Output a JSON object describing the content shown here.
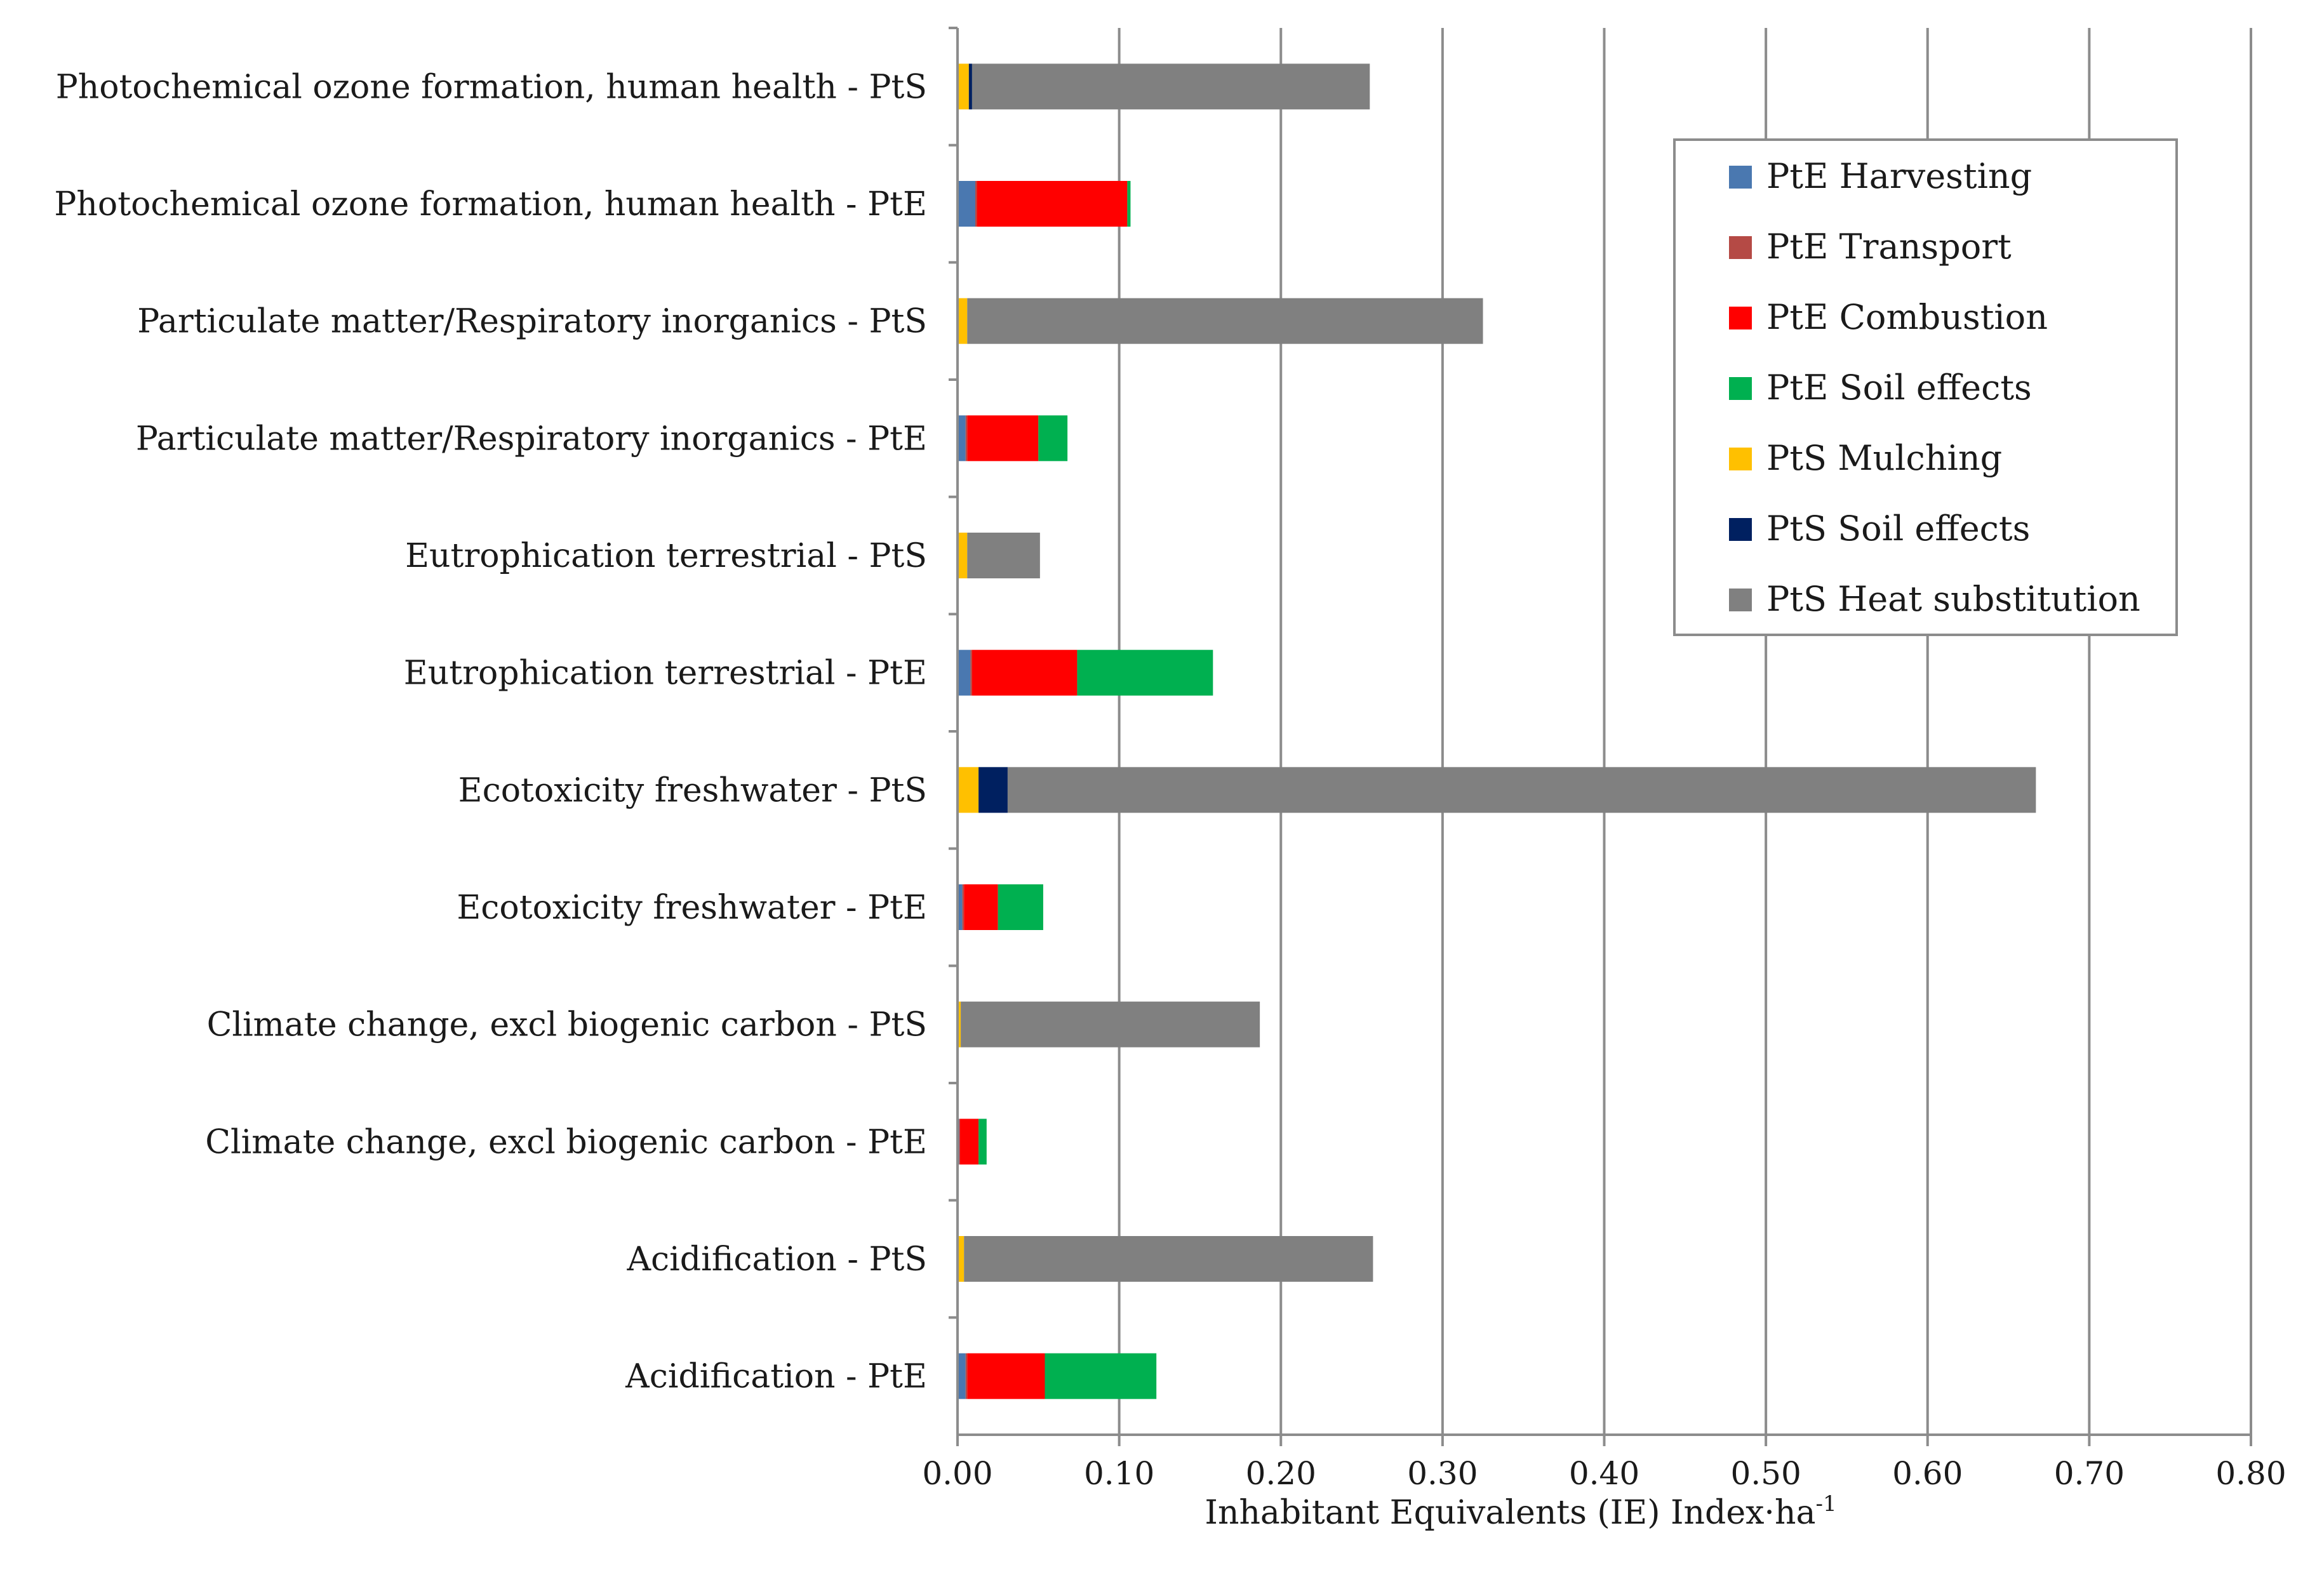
{
  "chart_data": {
    "type": "bar",
    "orientation": "horizontal",
    "stacked": true,
    "title": "",
    "xlabel": "Inhabitant Equivalents (IE) Index·ha",
    "xlabel_superscript": "-1",
    "ylabel": "",
    "xlim": [
      0,
      0.8
    ],
    "xticks": [
      0.0,
      0.1,
      0.2,
      0.3,
      0.4,
      0.5,
      0.6,
      0.7,
      0.8
    ],
    "xtick_labels": [
      "0.00",
      "0.10",
      "0.20",
      "0.30",
      "0.40",
      "0.50",
      "0.60",
      "0.70",
      "0.80"
    ],
    "grid": "vertical",
    "legend_position": "top-right",
    "categories": [
      "Photochemical ozone formation, human health - PtS",
      "Photochemical ozone formation, human health - PtE",
      "Particulate matter/Respiratory  inorganics - PtS",
      "Particulate matter/Respiratory  inorganics - PtE",
      "Eutrophication terrestrial  - PtS",
      "Eutrophication terrestrial  - PtE",
      "Ecotoxicity freshwater - PtS",
      "Ecotoxicity freshwater - PtE",
      "Climate change, excl biogenic carbon - PtS",
      "Climate change, excl biogenic carbon - PtE",
      "Acidification - PtS",
      "Acidification - PtE"
    ],
    "series": [
      {
        "name": "PtE Harvesting",
        "color": "#4a78b0",
        "values": [
          0,
          0.011,
          0,
          0.005,
          0,
          0.008,
          0,
          0.003,
          0,
          0.001,
          0,
          0.005
        ]
      },
      {
        "name": "PtE Transport",
        "color": "#b54a45",
        "values": [
          0,
          0.001,
          0,
          0.001,
          0,
          0.001,
          0,
          0.001,
          0,
          0.0005,
          0,
          0.001
        ]
      },
      {
        "name": "PtE Combustion",
        "color": "#ff0000",
        "values": [
          0,
          0.093,
          0,
          0.044,
          0,
          0.065,
          0,
          0.021,
          0,
          0.0115,
          0,
          0.048
        ]
      },
      {
        "name": "PtE Soil effects",
        "color": "#00b050",
        "values": [
          0,
          0.002,
          0,
          0.018,
          0,
          0.084,
          0,
          0.028,
          0,
          0.005,
          0,
          0.069
        ]
      },
      {
        "name": "PtS Mulching",
        "color": "#ffc000",
        "values": [
          0.007,
          0,
          0.006,
          0,
          0.006,
          0,
          0.013,
          0,
          0.002,
          0,
          0.004,
          0
        ]
      },
      {
        "name": "PtS Soil effects",
        "color": "#002060",
        "values": [
          0.002,
          0,
          0,
          0,
          0,
          0,
          0.018,
          0,
          0,
          0,
          0,
          0
        ]
      },
      {
        "name": "PtS Heat substitution",
        "color": "#808080",
        "values": [
          0.246,
          0,
          0.319,
          0,
          0.045,
          0,
          0.636,
          0,
          0.185,
          0,
          0.253,
          0
        ]
      }
    ]
  }
}
